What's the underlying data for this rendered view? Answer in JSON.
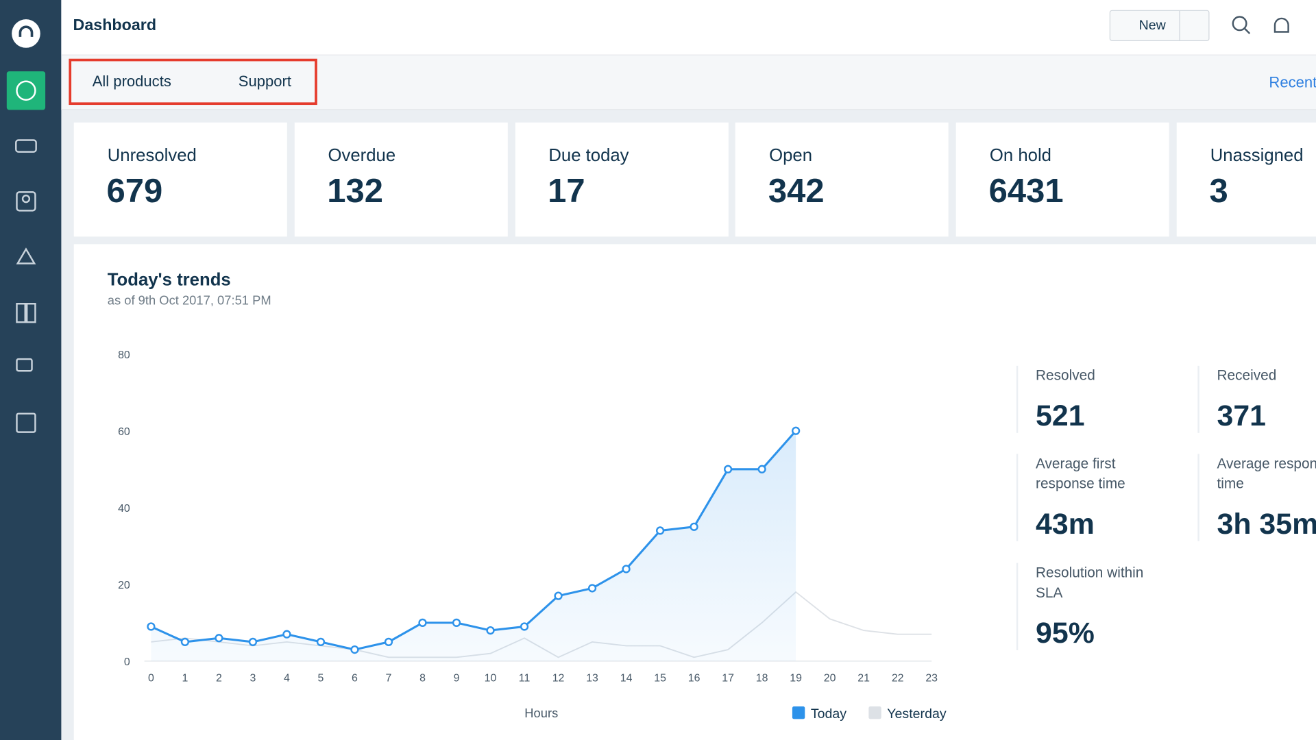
{
  "header": {
    "title": "Dashboard",
    "new_button": "New"
  },
  "filters": {
    "product": "All products",
    "group": "Support",
    "recent": "Recent"
  },
  "cards": [
    {
      "label": "Unresolved",
      "value": "679"
    },
    {
      "label": "Overdue",
      "value": "132"
    },
    {
      "label": "Due today",
      "value": "17"
    },
    {
      "label": "Open",
      "value": "342"
    },
    {
      "label": "On hold",
      "value": "6431"
    },
    {
      "label": "Unassigned",
      "value": "3"
    }
  ],
  "trends": {
    "title": "Today's trends",
    "subtitle": "as of 9th Oct 2017, 07:51 PM"
  },
  "metrics": [
    {
      "label": "Resolved",
      "value": "521"
    },
    {
      "label": "Received",
      "value": "371"
    },
    {
      "label": "Average first response time",
      "value": "43m"
    },
    {
      "label": "Average response time",
      "value": "3h 35m"
    },
    {
      "label": "Resolution within SLA",
      "value": "95%"
    }
  ],
  "chart_data": {
    "type": "line",
    "x_label": "Hours",
    "x": [
      0,
      1,
      2,
      3,
      4,
      5,
      6,
      7,
      8,
      9,
      10,
      11,
      12,
      13,
      14,
      15,
      16,
      17,
      18,
      19,
      20,
      21,
      22,
      23
    ],
    "xlim": [
      0,
      23
    ],
    "xticks": [
      0,
      1,
      2,
      3,
      4,
      5,
      6,
      7,
      8,
      9,
      10,
      11,
      12,
      13,
      14,
      15,
      16,
      17,
      18,
      19,
      20,
      21,
      22,
      23
    ],
    "ylim": [
      0,
      80
    ],
    "yticks": [
      0,
      20,
      40,
      60,
      80
    ],
    "grid": false,
    "legend": "bottom",
    "series": [
      {
        "name": "Today",
        "color": "#2d92ea",
        "values": [
          9,
          5,
          6,
          5,
          7,
          5,
          3,
          5,
          10,
          10,
          8,
          9,
          17,
          19,
          24,
          34,
          35,
          50,
          50,
          60,
          null,
          null,
          null,
          null
        ]
      },
      {
        "name": "Yesterday",
        "color": "#dde1e6",
        "values": [
          5,
          6,
          5,
          4,
          5,
          4,
          3,
          1,
          1,
          1,
          2,
          6,
          1,
          5,
          4,
          4,
          1,
          3,
          10,
          18,
          11,
          8,
          7,
          7
        ]
      }
    ]
  }
}
